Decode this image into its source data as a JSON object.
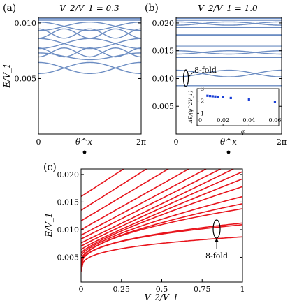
{
  "chart_data": [
    {
      "panel": "(a)",
      "type": "line",
      "title": "V_2/V_1 = 0.3",
      "xlabel": "θ^x",
      "ylabel": "E/V_1",
      "xlim": [
        0,
        6.283
      ],
      "ylim": [
        0,
        0.0105
      ],
      "x_ticks": [
        "0",
        "2π"
      ],
      "y_ticks": [
        {
          "v": 0.005,
          "label": "0.005"
        },
        {
          "v": 0.01,
          "label": "0.010"
        }
      ],
      "color": "#6b8cc2",
      "bands": [
        {
          "kind": "flat",
          "y": 0.0104
        },
        {
          "kind": "flat",
          "y": 0.0103
        },
        {
          "kind": "flat",
          "y": 0.01024
        },
        {
          "kind": "wave",
          "c": 0.0097,
          "a": 0.00038,
          "k": 1
        },
        {
          "kind": "wave",
          "c": 0.0097,
          "a": -0.00038,
          "k": 1
        },
        {
          "kind": "wave",
          "c": 0.00905,
          "a": 0.00042,
          "k": 2
        },
        {
          "kind": "wave",
          "c": 0.00905,
          "a": -0.00042,
          "k": 2
        },
        {
          "kind": "wave",
          "c": 0.00815,
          "a": 0.00045,
          "k": 1
        },
        {
          "kind": "wave",
          "c": 0.00815,
          "a": -0.00045,
          "k": 1
        },
        {
          "kind": "wave",
          "c": 0.00735,
          "a": 0.0004,
          "k": 2
        },
        {
          "kind": "wave",
          "c": 0.00735,
          "a": -0.0004,
          "k": 2
        },
        {
          "kind": "wave",
          "c": 0.007,
          "a": 0.0003,
          "k": 1
        },
        {
          "kind": "wave",
          "c": 0.00595,
          "a": 0.0005,
          "k": 1
        },
        {
          "kind": "wave",
          "c": 0.00595,
          "a": -0.0005,
          "k": 1
        }
      ]
    },
    {
      "panel": "(b)",
      "type": "line",
      "title": "V_2/V_1 = 1.0",
      "xlabel": "θ^x",
      "ylabel": "",
      "xlim": [
        0,
        6.283
      ],
      "ylim": [
        0,
        0.021
      ],
      "x_ticks": [
        "0",
        "2π"
      ],
      "y_ticks": [
        {
          "v": 0.005,
          "label": "0.005"
        },
        {
          "v": 0.01,
          "label": "0.010"
        },
        {
          "v": 0.015,
          "label": "0.015"
        },
        {
          "v": 0.02,
          "label": "0.020"
        }
      ],
      "color": "#6b8cc2",
      "annotation": "8-fold",
      "bands": [
        {
          "kind": "flat",
          "y": 0.0208
        },
        {
          "kind": "flat",
          "y": 0.0205
        },
        {
          "kind": "wave",
          "c": 0.0199,
          "a": 0.0003,
          "k": 1
        },
        {
          "kind": "wave",
          "c": 0.0199,
          "a": -0.0003,
          "k": 1
        },
        {
          "kind": "flat",
          "y": 0.0192
        },
        {
          "kind": "flat",
          "y": 0.018
        },
        {
          "kind": "flat",
          "y": 0.0178
        },
        {
          "kind": "flat",
          "y": 0.016
        },
        {
          "kind": "flat",
          "y": 0.0157
        },
        {
          "kind": "wave",
          "c": 0.0147,
          "a": 0.0003,
          "k": 1
        },
        {
          "kind": "wave",
          "c": 0.0147,
          "a": -0.0003,
          "k": 1
        },
        {
          "kind": "flat",
          "y": 0.0138
        },
        {
          "kind": "wave",
          "c": 0.0109,
          "a": 0.0006,
          "k": 1
        },
        {
          "kind": "wave",
          "c": 0.0109,
          "a": -0.0006,
          "k": 1
        },
        {
          "kind": "flat",
          "y": 0.0087
        }
      ],
      "inset": {
        "ylabel": "ΔE/(φ^2V_1)",
        "xlabel": "φ",
        "xlim": [
          0,
          0.063
        ],
        "ylim": [
          0,
          3
        ],
        "x_ticks": [
          {
            "v": 0,
            "label": "0"
          },
          {
            "v": 0.02,
            "label": "0.02"
          },
          {
            "v": 0.04,
            "label": "0.04"
          },
          {
            "v": 0.06,
            "label": "0.06"
          }
        ],
        "y_ticks": [
          {
            "v": 0,
            "label": "0"
          },
          {
            "v": 1,
            "label": "1"
          },
          {
            "v": 2,
            "label": "2"
          },
          {
            "v": 3,
            "label": "3"
          }
        ],
        "color": "#1a3fd6",
        "x": [
          0.008,
          0.01,
          0.012,
          0.014,
          0.016,
          0.02,
          0.026,
          0.04,
          0.06
        ],
        "y": [
          2.42,
          2.4,
          2.38,
          2.36,
          2.34,
          2.3,
          2.24,
          2.12,
          1.94
        ]
      }
    },
    {
      "panel": "(c)",
      "type": "line",
      "title": "",
      "xlabel": "V_2/V_1",
      "ylabel": "E/V_1",
      "xlim": [
        0,
        1
      ],
      "ylim": [
        0.0005,
        0.021
      ],
      "x_ticks": [
        {
          "v": 0,
          "label": "0"
        },
        {
          "v": 0.25,
          "label": "0.25"
        },
        {
          "v": 0.5,
          "label": "0.5"
        },
        {
          "v": 0.75,
          "label": "0.75"
        },
        {
          "v": 1,
          "label": "1"
        }
      ],
      "y_ticks": [
        {
          "v": 0.005,
          "label": "0.005"
        },
        {
          "v": 0.01,
          "label": "0.010"
        },
        {
          "v": 0.015,
          "label": "0.015"
        },
        {
          "v": 0.02,
          "label": "0.020"
        }
      ],
      "color": "#e8141c",
      "annotation": "8-fold",
      "curves": [
        {
          "y0": 0.0024,
          "y1": 0.0087,
          "p": 0.3
        },
        {
          "y0": 0.003,
          "y1": 0.0109,
          "p": 0.35
        },
        {
          "y0": 0.0035,
          "y1": 0.0112,
          "p": 0.4
        },
        {
          "y0": 0.004,
          "y1": 0.0138,
          "p": 0.5
        },
        {
          "y0": 0.0046,
          "y1": 0.0147,
          "p": 0.6
        },
        {
          "y0": 0.0053,
          "y1": 0.016,
          "p": 0.7
        },
        {
          "y0": 0.0058,
          "y1": 0.0178,
          "p": 0.8
        },
        {
          "y0": 0.0064,
          "y1": 0.0192,
          "p": 0.9
        },
        {
          "y0": 0.007,
          "y1": 0.0205,
          "p": 0.95
        },
        {
          "y0": 0.0076,
          "y1": 0.0218,
          "p": 1.0
        },
        {
          "y0": 0.0083,
          "y1": 0.023,
          "p": 1.0
        },
        {
          "y0": 0.009,
          "y1": 0.0245,
          "p": 1.0
        },
        {
          "y0": 0.01,
          "y1": 0.0265,
          "p": 1.0
        },
        {
          "y0": 0.0116,
          "y1": 0.029,
          "p": 1.0
        },
        {
          "y0": 0.0135,
          "y1": 0.032,
          "p": 1.0
        },
        {
          "y0": 0.016,
          "y1": 0.035,
          "p": 1.0
        }
      ]
    }
  ]
}
